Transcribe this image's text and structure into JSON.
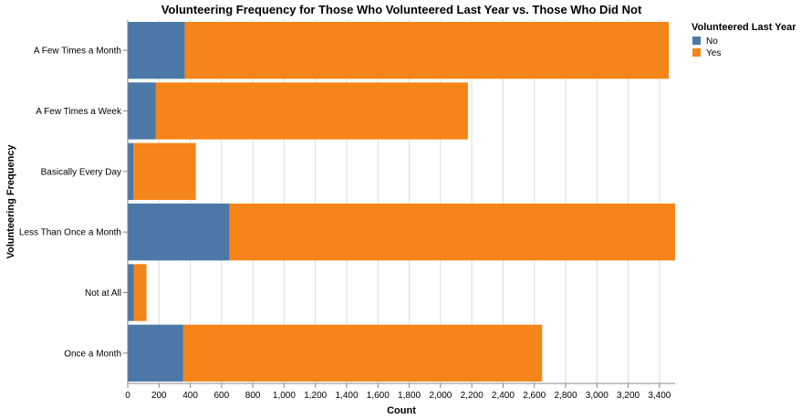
{
  "chart_data": {
    "type": "bar",
    "orientation": "horizontal",
    "stacked": true,
    "title": "Volunteering Frequency for Those Who Volunteered Last Year vs. Those Who Did Not",
    "xlabel": "Count",
    "ylabel": "Volunteering Frequency",
    "xlim": [
      0,
      3500
    ],
    "x_ticks": [
      0,
      200,
      400,
      600,
      800,
      1000,
      1200,
      1400,
      1600,
      1800,
      2000,
      2200,
      2400,
      2600,
      2800,
      3000,
      3200,
      3400
    ],
    "x_tick_labels": [
      "0",
      "200",
      "400",
      "600",
      "800",
      "1,000",
      "1,200",
      "1,400",
      "1,600",
      "1,800",
      "2,000",
      "2,200",
      "2,400",
      "2,600",
      "2,800",
      "3,000",
      "3,200",
      "3,400"
    ],
    "grid": true,
    "categories": [
      "A Few Times a Month",
      "A Few Times a Week",
      "Basically Every Day",
      "Less Than Once a Month",
      "Not at All",
      "Once a Month"
    ],
    "series": [
      {
        "name": "No",
        "color": "#4c78a8",
        "values": [
          365,
          180,
          35,
          650,
          40,
          355
        ]
      },
      {
        "name": "Yes",
        "color": "#f58518",
        "values": [
          3095,
          1995,
          400,
          2850,
          80,
          2295
        ]
      }
    ],
    "legend": {
      "title": "Volunteered Last Year",
      "position": "top-right"
    }
  }
}
